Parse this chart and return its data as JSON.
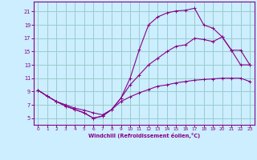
{
  "bg_color": "#cceeff",
  "grid_color": "#99cccc",
  "line_color": "#880088",
  "xlabel": "Windchill (Refroidissement éolien,°C)",
  "xlim": [
    -0.5,
    23.5
  ],
  "ylim": [
    4,
    22.5
  ],
  "yticks": [
    5,
    7,
    9,
    11,
    13,
    15,
    17,
    19,
    21
  ],
  "xticks": [
    0,
    1,
    2,
    3,
    4,
    5,
    6,
    7,
    8,
    9,
    10,
    11,
    12,
    13,
    14,
    15,
    16,
    17,
    18,
    19,
    20,
    21,
    22,
    23
  ],
  "line1_x": [
    0,
    1,
    2,
    3,
    4,
    5,
    6,
    7,
    8,
    9,
    10,
    11,
    12,
    13,
    14,
    15,
    16,
    17,
    18,
    19,
    20,
    21,
    22,
    23
  ],
  "line1_y": [
    9.2,
    8.3,
    7.5,
    6.8,
    6.3,
    5.8,
    5.0,
    5.3,
    6.3,
    8.0,
    11.0,
    15.3,
    19.0,
    20.2,
    20.8,
    21.1,
    21.2,
    21.5,
    19.0,
    18.5,
    17.2,
    15.2,
    13.0,
    13.0
  ],
  "line2_x": [
    0,
    1,
    2,
    3,
    4,
    5,
    6,
    7,
    8,
    9,
    10,
    11,
    12,
    13,
    14,
    15,
    16,
    17,
    18,
    19,
    20,
    21,
    22,
    23
  ],
  "line2_y": [
    9.2,
    8.3,
    7.5,
    6.8,
    6.3,
    5.8,
    5.0,
    5.3,
    6.3,
    8.0,
    10.0,
    11.5,
    13.0,
    14.0,
    15.0,
    15.8,
    16.0,
    17.0,
    16.8,
    16.5,
    17.2,
    15.2,
    15.2,
    13.0
  ],
  "line3_x": [
    0,
    1,
    2,
    3,
    4,
    5,
    6,
    7,
    8,
    9,
    10,
    11,
    12,
    13,
    14,
    15,
    16,
    17,
    18,
    19,
    20,
    21,
    22,
    23
  ],
  "line3_y": [
    9.2,
    8.3,
    7.5,
    7.0,
    6.5,
    6.2,
    5.8,
    5.5,
    6.3,
    7.5,
    8.2,
    8.8,
    9.3,
    9.8,
    10.0,
    10.3,
    10.5,
    10.7,
    10.8,
    10.9,
    11.0,
    11.0,
    11.0,
    10.5
  ]
}
